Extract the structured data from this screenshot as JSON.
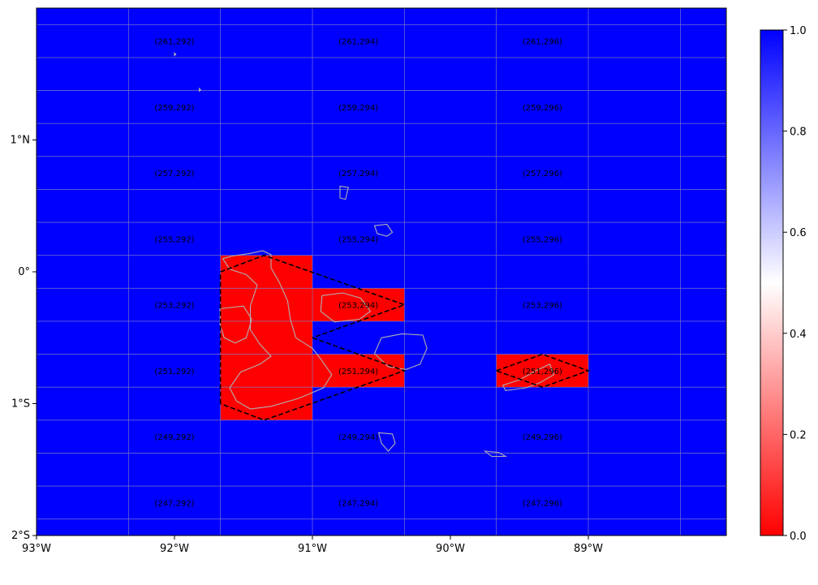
{
  "map": {
    "extent": {
      "lon_min": -93.0,
      "lon_max": -88.0,
      "lat_min": -2.0,
      "lat_max": 2.0
    },
    "background_color": "#0000ff",
    "mask_color": "#ff0000",
    "gridline_color": "#8080c0",
    "coastline_color": "#b0b0b0",
    "diamond_color": "#000000",
    "grid_lons": [
      -92.333,
      -91.667,
      -91.0,
      -90.333,
      -89.667,
      -89.0,
      -88.333
    ],
    "grid_lats": [
      1.875,
      1.625,
      1.375,
      1.125,
      0.875,
      0.625,
      0.375,
      0.125,
      -0.125,
      -0.375,
      -0.625,
      -0.875,
      -1.125,
      -1.375,
      -1.625,
      -1.875
    ],
    "x_ticks": [
      {
        "value": -93,
        "label": "93°W"
      },
      {
        "value": -92,
        "label": "92°W"
      },
      {
        "value": -91,
        "label": "91°W"
      },
      {
        "value": -90,
        "label": "90°W"
      },
      {
        "value": -89,
        "label": "89°W"
      }
    ],
    "y_ticks": [
      {
        "value": 1,
        "label": "1°N"
      },
      {
        "value": 0,
        "label": "0°"
      },
      {
        "value": -1,
        "label": "1°S"
      },
      {
        "value": -2,
        "label": "2°S"
      }
    ],
    "cell_labels": [
      {
        "text": "(261,292)",
        "lon": -92.0,
        "lat": 1.75
      },
      {
        "text": "(261,294)",
        "lon": -90.667,
        "lat": 1.75
      },
      {
        "text": "(261,296)",
        "lon": -89.333,
        "lat": 1.75
      },
      {
        "text": "(259,292)",
        "lon": -92.0,
        "lat": 1.25
      },
      {
        "text": "(259,294)",
        "lon": -90.667,
        "lat": 1.25
      },
      {
        "text": "(259,296)",
        "lon": -89.333,
        "lat": 1.25
      },
      {
        "text": "(257,292)",
        "lon": -92.0,
        "lat": 0.75
      },
      {
        "text": "(257,294)",
        "lon": -90.667,
        "lat": 0.75
      },
      {
        "text": "(257,296)",
        "lon": -89.333,
        "lat": 0.75
      },
      {
        "text": "(255,292)",
        "lon": -92.0,
        "lat": 0.25
      },
      {
        "text": "(255,294)",
        "lon": -90.667,
        "lat": 0.25
      },
      {
        "text": "(255,296)",
        "lon": -89.333,
        "lat": 0.25
      },
      {
        "text": "(253,292)",
        "lon": -92.0,
        "lat": -0.25
      },
      {
        "text": "(253,294)",
        "lon": -90.667,
        "lat": -0.25
      },
      {
        "text": "(253,296)",
        "lon": -89.333,
        "lat": -0.25
      },
      {
        "text": "(251,292)",
        "lon": -92.0,
        "lat": -0.75
      },
      {
        "text": "(251,294)",
        "lon": -90.667,
        "lat": -0.75
      },
      {
        "text": "(251,296)",
        "lon": -89.333,
        "lat": -0.75
      },
      {
        "text": "(249,292)",
        "lon": -92.0,
        "lat": -1.25
      },
      {
        "text": "(249,294)",
        "lon": -90.667,
        "lat": -1.25
      },
      {
        "text": "(249,296)",
        "lon": -89.333,
        "lat": -1.25
      },
      {
        "text": "(247,292)",
        "lon": -92.0,
        "lat": -1.75
      },
      {
        "text": "(247,294)",
        "lon": -90.667,
        "lat": -1.75
      },
      {
        "text": "(247,296)",
        "lon": -89.333,
        "lat": -1.75
      }
    ],
    "masked_cells": [
      {
        "lon0": -91.667,
        "lon1": -91.0,
        "lat0": -1.125,
        "lat1": 0.125
      },
      {
        "lon0": -91.0,
        "lon1": -90.333,
        "lat0": -0.375,
        "lat1": -0.125
      },
      {
        "lon0": -91.0,
        "lon1": -90.333,
        "lat0": -0.875,
        "lat1": -0.625
      },
      {
        "lon0": -89.667,
        "lon1": -89.0,
        "lat0": -0.875,
        "lat1": -0.625
      }
    ],
    "diamonds": [
      [
        [
          -91.667,
          0.0
        ],
        [
          -91.35,
          0.125
        ],
        [
          -90.333,
          -0.25
        ],
        [
          -91.0,
          -0.5
        ]
      ],
      [
        [
          -91.0,
          -0.5
        ],
        [
          -90.333,
          -0.75
        ],
        [
          -91.35,
          -1.125
        ],
        [
          -91.667,
          -1.0
        ]
      ],
      [
        [
          -91.667,
          -1.0
        ],
        [
          -91.667,
          0.0
        ]
      ],
      [
        [
          -89.667,
          -0.75
        ],
        [
          -89.333,
          -0.625
        ],
        [
          -89.0,
          -0.75
        ],
        [
          -89.333,
          -0.875
        ],
        [
          -89.667,
          -0.75
        ]
      ]
    ],
    "islands": [
      {
        "name": "isabela",
        "points": [
          [
            -91.65,
            0.1
          ],
          [
            -91.58,
            0.12
          ],
          [
            -91.45,
            0.14
          ],
          [
            -91.36,
            0.16
          ],
          [
            -91.3,
            0.13
          ],
          [
            -91.3,
            0.03
          ],
          [
            -91.24,
            -0.08
          ],
          [
            -91.18,
            -0.22
          ],
          [
            -91.16,
            -0.36
          ],
          [
            -91.12,
            -0.5
          ],
          [
            -91.0,
            -0.58
          ],
          [
            -90.94,
            -0.66
          ],
          [
            -90.86,
            -0.78
          ],
          [
            -90.92,
            -0.88
          ],
          [
            -91.1,
            -0.96
          ],
          [
            -91.3,
            -1.02
          ],
          [
            -91.45,
            -1.04
          ],
          [
            -91.55,
            -0.98
          ],
          [
            -91.6,
            -0.88
          ],
          [
            -91.52,
            -0.76
          ],
          [
            -91.38,
            -0.7
          ],
          [
            -91.3,
            -0.64
          ],
          [
            -91.38,
            -0.55
          ],
          [
            -91.45,
            -0.44
          ],
          [
            -91.45,
            -0.26
          ],
          [
            -91.4,
            -0.1
          ],
          [
            -91.48,
            -0.02
          ],
          [
            -91.6,
            0.02
          ],
          [
            -91.65,
            0.1
          ]
        ]
      },
      {
        "name": "fernandina",
        "points": [
          [
            -91.67,
            -0.28
          ],
          [
            -91.5,
            -0.26
          ],
          [
            -91.44,
            -0.36
          ],
          [
            -91.48,
            -0.5
          ],
          [
            -91.56,
            -0.54
          ],
          [
            -91.64,
            -0.5
          ],
          [
            -91.67,
            -0.4
          ],
          [
            -91.67,
            -0.28
          ]
        ]
      },
      {
        "name": "santiago",
        "points": [
          [
            -90.93,
            -0.18
          ],
          [
            -90.78,
            -0.16
          ],
          [
            -90.65,
            -0.2
          ],
          [
            -90.58,
            -0.3
          ],
          [
            -90.66,
            -0.36
          ],
          [
            -90.84,
            -0.38
          ],
          [
            -90.94,
            -0.3
          ],
          [
            -90.93,
            -0.18
          ]
        ]
      },
      {
        "name": "santa-cruz",
        "points": [
          [
            -90.5,
            -0.5
          ],
          [
            -90.35,
            -0.47
          ],
          [
            -90.2,
            -0.48
          ],
          [
            -90.17,
            -0.58
          ],
          [
            -90.22,
            -0.7
          ],
          [
            -90.32,
            -0.74
          ],
          [
            -90.45,
            -0.72
          ],
          [
            -90.55,
            -0.62
          ],
          [
            -90.5,
            -0.5
          ]
        ]
      },
      {
        "name": "san-cristobal",
        "points": [
          [
            -89.6,
            -0.9
          ],
          [
            -89.45,
            -0.88
          ],
          [
            -89.35,
            -0.84
          ],
          [
            -89.25,
            -0.78
          ],
          [
            -89.28,
            -0.7
          ],
          [
            -89.38,
            -0.75
          ],
          [
            -89.5,
            -0.82
          ],
          [
            -89.62,
            -0.86
          ],
          [
            -89.6,
            -0.9
          ]
        ]
      },
      {
        "name": "pinta",
        "points": [
          [
            -90.8,
            0.65
          ],
          [
            -90.74,
            0.64
          ],
          [
            -90.76,
            0.55
          ],
          [
            -90.8,
            0.56
          ],
          [
            -90.8,
            0.65
          ]
        ]
      },
      {
        "name": "marchena",
        "points": [
          [
            -90.55,
            0.35
          ],
          [
            -90.46,
            0.36
          ],
          [
            -90.42,
            0.3
          ],
          [
            -90.46,
            0.27
          ],
          [
            -90.53,
            0.29
          ],
          [
            -90.55,
            0.35
          ]
        ]
      },
      {
        "name": "floreana",
        "points": [
          [
            -90.52,
            -1.22
          ],
          [
            -90.42,
            -1.23
          ],
          [
            -90.4,
            -1.3
          ],
          [
            -90.45,
            -1.36
          ],
          [
            -90.5,
            -1.3
          ],
          [
            -90.52,
            -1.22
          ]
        ]
      },
      {
        "name": "espanola",
        "points": [
          [
            -89.75,
            -1.36
          ],
          [
            -89.65,
            -1.37
          ],
          [
            -89.6,
            -1.4
          ],
          [
            -89.7,
            -1.4
          ],
          [
            -89.75,
            -1.36
          ]
        ]
      },
      {
        "name": "wolf",
        "points": [
          [
            -91.82,
            1.39
          ],
          [
            -91.81,
            1.38
          ],
          [
            -91.82,
            1.37
          ],
          [
            -91.82,
            1.39
          ]
        ]
      },
      {
        "name": "darwin",
        "points": [
          [
            -92.0,
            1.66
          ],
          [
            -91.99,
            1.65
          ],
          [
            -92.0,
            1.64
          ],
          [
            -92.0,
            1.66
          ]
        ]
      }
    ]
  },
  "colorbar": {
    "min": 0.0,
    "max": 1.0,
    "stops": [
      "#ff0000",
      "#ffffff",
      "#0000ff"
    ],
    "ticks": [
      {
        "value": 0.0,
        "label": "0.0"
      },
      {
        "value": 0.2,
        "label": "0.2"
      },
      {
        "value": 0.4,
        "label": "0.4"
      },
      {
        "value": 0.6,
        "label": "0.6"
      },
      {
        "value": 0.8,
        "label": "0.8"
      },
      {
        "value": 1.0,
        "label": "1.0"
      }
    ]
  }
}
